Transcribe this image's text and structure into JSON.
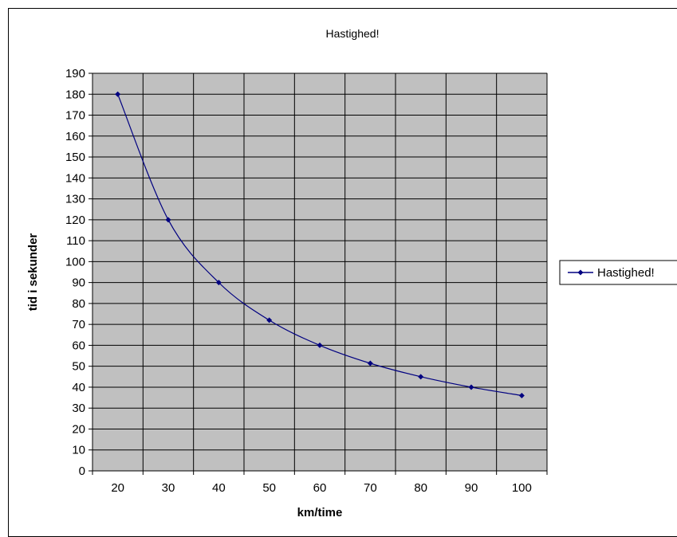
{
  "chart_data": {
    "type": "line",
    "title": "Hastighed!",
    "xlabel": "km/time",
    "ylabel": "tid i sekunder",
    "categories": [
      "20",
      "30",
      "40",
      "50",
      "60",
      "70",
      "80",
      "90",
      "100"
    ],
    "series": [
      {
        "name": "Hastighed!",
        "values": [
          180,
          120,
          90,
          72,
          60,
          51.4,
          45,
          40,
          36
        ],
        "color": "#000080",
        "marker": "diamond"
      }
    ],
    "ylim": [
      0,
      190
    ],
    "yticks": [
      "0",
      "10",
      "20",
      "30",
      "40",
      "50",
      "60",
      "70",
      "80",
      "90",
      "100",
      "110",
      "120",
      "130",
      "140",
      "150",
      "160",
      "170",
      "180",
      "190"
    ],
    "grid": true,
    "plot_background": "#c0c0c0",
    "legend": {
      "position": "right",
      "labels": [
        "Hastighed!"
      ]
    }
  }
}
